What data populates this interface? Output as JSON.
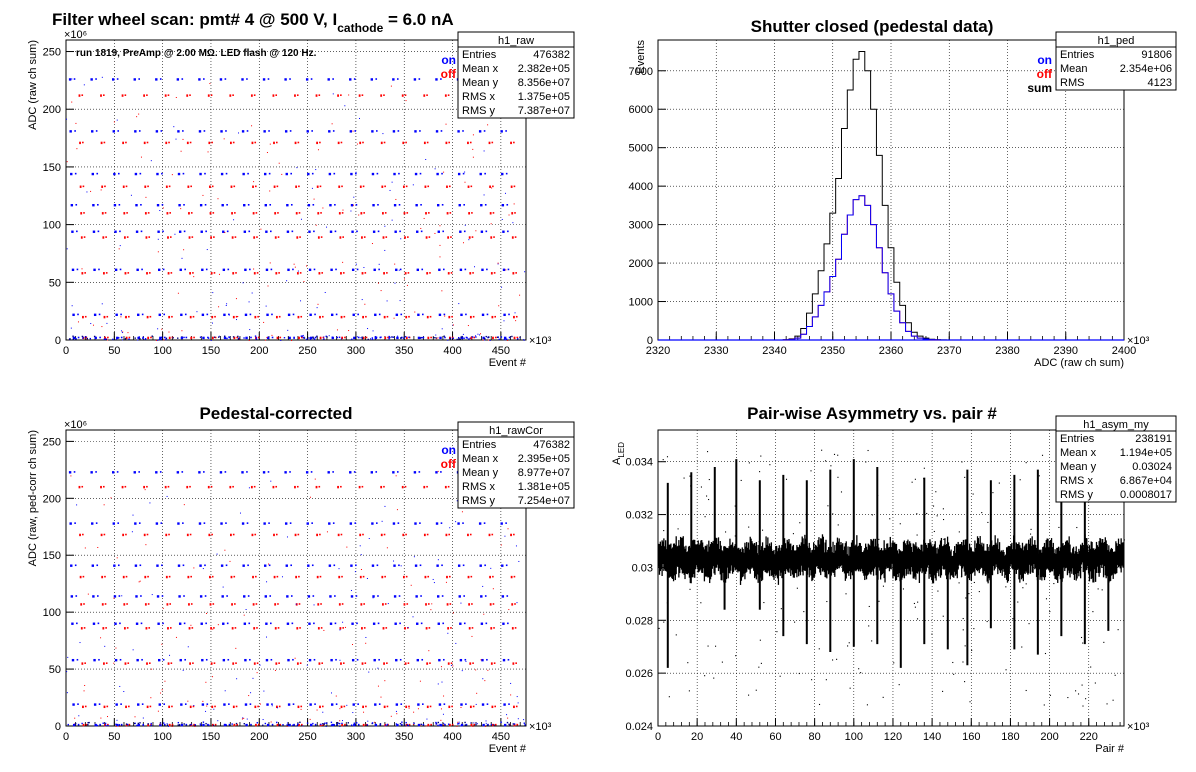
{
  "colors": {
    "on": "#0000ff",
    "off": "#ff0000",
    "sum": "#000000",
    "grid": "#000000"
  },
  "chart_data": [
    {
      "type": "scatter",
      "title_main": "Filter wheel scan: pmt#   4 @   500 V, I",
      "title_sub": "cathode",
      "title_tail": "  = 6.0 nA",
      "annotation": "run 1819, PreAmp @ 2.00 MΩ. LED flash @  120 Hz.",
      "xlabel": "Event #",
      "ylabel": "ADC (raw ch sum)",
      "x_exponent": "×10³",
      "y_exponent": "×10⁶",
      "xlim": [
        0,
        476
      ],
      "ylim": [
        0,
        260
      ],
      "xticks": [
        0,
        50,
        100,
        150,
        200,
        250,
        300,
        350,
        400,
        450
      ],
      "yticks": [
        0,
        50,
        100,
        150,
        200,
        250
      ],
      "legend": [
        {
          "name": "on",
          "color": "#0000ff"
        },
        {
          "name": "off",
          "color": "#ff0000"
        }
      ],
      "stats_title": "h1_raw",
      "stats": [
        {
          "name": "Entries",
          "value": "476382"
        },
        {
          "name": "Mean x",
          "value": "2.382e+05"
        },
        {
          "name": "Mean y",
          "value": "8.356e+07"
        },
        {
          "name": "RMS x",
          "value": "1.375e+05"
        },
        {
          "name": "RMS y",
          "value": "7.387e+07"
        }
      ],
      "levels": [
        {
          "on": 226,
          "off": 212
        },
        {
          "on": 181,
          "off": 171
        },
        {
          "on": 144,
          "off": 133
        },
        {
          "on": 117,
          "off": 110
        },
        {
          "on": 94,
          "off": 89
        },
        {
          "on": 61,
          "off": 58
        },
        {
          "on": 22,
          "off": 20
        },
        {
          "on": 2,
          "off": 2
        }
      ],
      "period": 22.3
    },
    {
      "type": "line",
      "title": "Shutter closed (pedestal data)",
      "xlabel": "ADC (raw ch sum)",
      "ylabel": "Events",
      "x_exponent": "×10³",
      "xlim": [
        2320,
        2400
      ],
      "ylim": [
        0,
        7800
      ],
      "xticks": [
        2320,
        2330,
        2340,
        2350,
        2360,
        2370,
        2380,
        2390,
        2400
      ],
      "yticks": [
        0,
        1000,
        2000,
        3000,
        4000,
        5000,
        6000,
        7000
      ],
      "legend": [
        {
          "name": "on",
          "color": "#0000ff"
        },
        {
          "name": "off",
          "color": "#ff0000"
        },
        {
          "name": "sum",
          "color": "#000000"
        }
      ],
      "stats_title": "h1_ped",
      "stats": [
        {
          "name": "Entries",
          "value": "91806"
        },
        {
          "name": "Mean",
          "value": "2.354e+06"
        },
        {
          "name": "RMS",
          "value": "4123"
        }
      ],
      "x": [
        2341,
        2342,
        2343,
        2344,
        2345,
        2346,
        2347,
        2348,
        2349,
        2350,
        2351,
        2352,
        2353,
        2354,
        2355,
        2356,
        2357,
        2358,
        2359,
        2360,
        2361,
        2362,
        2363,
        2364,
        2365,
        2366,
        2367,
        2368,
        2369,
        2370
      ],
      "series": [
        {
          "name": "sum",
          "values": [
            0,
            5,
            30,
            100,
            300,
            700,
            1200,
            1800,
            2500,
            3300,
            4200,
            5500,
            6500,
            7300,
            7500,
            7000,
            6000,
            4800,
            3500,
            2400,
            1500,
            900,
            450,
            200,
            100,
            50,
            20,
            8,
            2,
            0
          ]
        },
        {
          "name": "on",
          "values": [
            0,
            3,
            15,
            50,
            150,
            350,
            600,
            900,
            1250,
            1650,
            2100,
            2750,
            3250,
            3650,
            3750,
            3500,
            3000,
            2400,
            1750,
            1200,
            750,
            450,
            225,
            100,
            50,
            25,
            10,
            4,
            1,
            0
          ]
        },
        {
          "name": "off",
          "values": [
            0,
            2,
            15,
            50,
            150,
            350,
            600,
            900,
            1250,
            1650,
            2100,
            2750,
            3250,
            3650,
            3750,
            3500,
            3000,
            2400,
            1750,
            1200,
            750,
            450,
            225,
            100,
            50,
            25,
            10,
            4,
            1,
            0
          ]
        }
      ]
    },
    {
      "type": "scatter",
      "title": "Pedestal-corrected",
      "xlabel": "Event #",
      "ylabel": "ADC (raw, ped-corr ch sum)",
      "x_exponent": "×10³",
      "y_exponent": "×10⁶",
      "xlim": [
        0,
        476
      ],
      "ylim": [
        0,
        260
      ],
      "xticks": [
        0,
        50,
        100,
        150,
        200,
        250,
        300,
        350,
        400,
        450
      ],
      "yticks": [
        0,
        50,
        100,
        150,
        200,
        250
      ],
      "legend": [
        {
          "name": "on",
          "color": "#0000ff"
        },
        {
          "name": "off",
          "color": "#ff0000"
        }
      ],
      "stats_title": "h1_rawCor",
      "stats": [
        {
          "name": "Entries",
          "value": "476382"
        },
        {
          "name": "Mean x",
          "value": "2.395e+05"
        },
        {
          "name": "Mean y",
          "value": "8.977e+07"
        },
        {
          "name": "RMS x",
          "value": "1.381e+05"
        },
        {
          "name": "RMS y",
          "value": "7.254e+07"
        }
      ],
      "levels": [
        {
          "on": 223,
          "off": 210
        },
        {
          "on": 178,
          "off": 168
        },
        {
          "on": 141,
          "off": 131
        },
        {
          "on": 114,
          "off": 107
        },
        {
          "on": 90,
          "off": 86
        },
        {
          "on": 58,
          "off": 55
        },
        {
          "on": 19,
          "off": 17
        },
        {
          "on": 1,
          "off": 1
        }
      ],
      "period": 22.3
    },
    {
      "type": "scatter",
      "title": "Pair-wise Asymmetry vs. pair #",
      "xlabel": "Pair #",
      "ylabel": "A",
      "ylabel_sub": "LED",
      "x_exponent": "×10³",
      "xlim": [
        0,
        238
      ],
      "ylim": [
        0.024,
        0.0352
      ],
      "xticks": [
        0,
        20,
        40,
        60,
        80,
        100,
        120,
        140,
        160,
        180,
        200,
        220
      ],
      "yticks": [
        "0.024",
        "0.026",
        "0.028",
        "0.03",
        "0.032",
        "0.034"
      ],
      "stats_title": "h1_asym_my",
      "stats": [
        {
          "name": "Entries",
          "value": "238191"
        },
        {
          "name": "Mean x",
          "value": "1.194e+05"
        },
        {
          "name": "Mean y",
          "value": "0.03024"
        },
        {
          "name": "RMS x",
          "value": "6.867e+04"
        },
        {
          "name": "RMS y",
          "value": "0.0008017"
        }
      ],
      "band_center": 0.0303,
      "band_halfwidth": 0.0006,
      "spikes_up": [
        {
          "x": 5,
          "to": 0.0332
        },
        {
          "x": 17,
          "to": 0.0336
        },
        {
          "x": 29,
          "to": 0.0338
        },
        {
          "x": 40,
          "to": 0.0341
        },
        {
          "x": 52,
          "to": 0.0333
        },
        {
          "x": 64,
          "to": 0.0335
        },
        {
          "x": 76,
          "to": 0.0333
        },
        {
          "x": 88,
          "to": 0.0337
        },
        {
          "x": 100,
          "to": 0.0341
        },
        {
          "x": 112,
          "to": 0.0338
        },
        {
          "x": 136,
          "to": 0.0334
        },
        {
          "x": 158,
          "to": 0.0337
        },
        {
          "x": 170,
          "to": 0.0333
        },
        {
          "x": 182,
          "to": 0.0335
        },
        {
          "x": 194,
          "to": 0.0337
        },
        {
          "x": 206,
          "to": 0.0333
        },
        {
          "x": 218,
          "to": 0.0334
        }
      ],
      "spikes_down": [
        {
          "x": 5,
          "to": 0.0262
        },
        {
          "x": 34,
          "to": 0.0284
        },
        {
          "x": 52,
          "to": 0.0284
        },
        {
          "x": 64,
          "to": 0.0274
        },
        {
          "x": 76,
          "to": 0.0271
        },
        {
          "x": 88,
          "to": 0.0268
        },
        {
          "x": 100,
          "to": 0.027
        },
        {
          "x": 112,
          "to": 0.0271
        },
        {
          "x": 124,
          "to": 0.0262
        },
        {
          "x": 136,
          "to": 0.0271
        },
        {
          "x": 148,
          "to": 0.0269
        },
        {
          "x": 158,
          "to": 0.0263
        },
        {
          "x": 170,
          "to": 0.0277
        },
        {
          "x": 182,
          "to": 0.0269
        },
        {
          "x": 194,
          "to": 0.0267
        },
        {
          "x": 206,
          "to": 0.0274
        },
        {
          "x": 218,
          "to": 0.0271
        },
        {
          "x": 230,
          "to": 0.0276
        }
      ]
    }
  ]
}
